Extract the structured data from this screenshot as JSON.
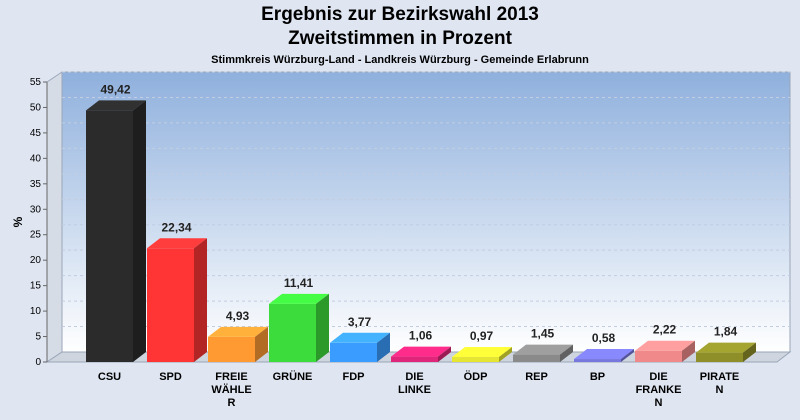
{
  "chart_data": {
    "type": "bar",
    "title": "Ergebnis zur Bezirkswahl 2013",
    "subtitle_line": "Zweitstimmen in Prozent",
    "subtitle": "Stimmkreis Würzburg-Land - Landkreis Würzburg - Gemeinde Erlabrunn",
    "ylabel": "%",
    "xlabel": "",
    "ylim": [
      0,
      55
    ],
    "yticks": [
      0,
      5,
      10,
      15,
      20,
      25,
      30,
      35,
      40,
      45,
      50,
      55
    ],
    "grid": true,
    "categories": [
      [
        "CSU"
      ],
      [
        "SPD"
      ],
      [
        "FREIE",
        "WÄHLE",
        "R"
      ],
      [
        "GRÜNE"
      ],
      [
        "FDP"
      ],
      [
        "DIE",
        "LINKE"
      ],
      [
        "ÖDP"
      ],
      [
        "REP"
      ],
      [
        "BP"
      ],
      [
        "DIE",
        "FRANKE",
        "N"
      ],
      [
        "PIRATE",
        "N"
      ]
    ],
    "values": [
      49.42,
      22.34,
      4.93,
      11.41,
      3.77,
      1.06,
      0.97,
      1.45,
      0.58,
      2.22,
      1.84
    ],
    "value_labels": [
      "49,42",
      "22,34",
      "4,93",
      "11,41",
      "3,77",
      "1,06",
      "0,97",
      "1,45",
      "0,58",
      "2,22",
      "1,84"
    ],
    "colors": [
      "#2b2b2b",
      "#ff3535",
      "#ff9a33",
      "#3ddc3d",
      "#3a9cff",
      "#e0267a",
      "#e6e632",
      "#8a8a8a",
      "#7777dd",
      "#f08a8a",
      "#8f8f2a"
    ]
  }
}
